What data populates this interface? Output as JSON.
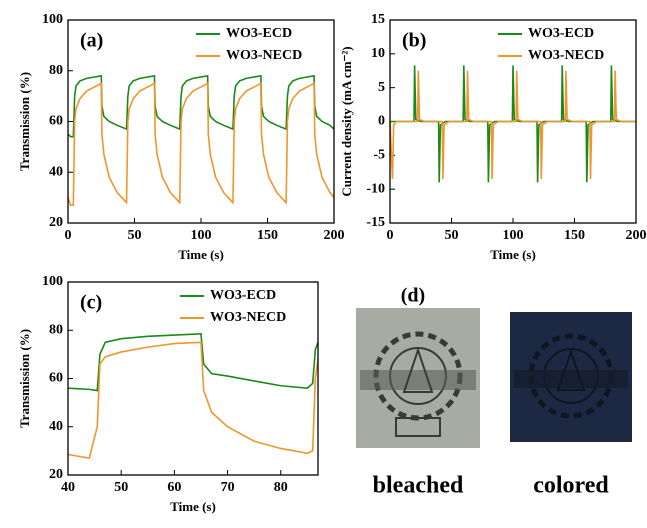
{
  "chart_data": [
    {
      "type": "line",
      "annotation": "(a)",
      "x_label": "Time (s)",
      "y_label": "Transmission (%)",
      "xlim": [
        0,
        200
      ],
      "xticks": [
        0,
        50,
        100,
        150,
        200
      ],
      "ylim": [
        20,
        100
      ],
      "yticks": [
        20,
        40,
        60,
        80,
        100
      ],
      "legend": "upper right",
      "x": [
        0,
        2,
        4,
        5,
        6,
        9,
        14,
        25,
        25.5,
        27,
        31,
        37,
        44,
        45,
        46,
        49,
        54,
        65,
        65.5,
        67,
        71,
        77,
        84,
        85,
        86,
        89,
        94,
        105,
        105.5,
        107,
        111,
        117,
        124,
        125,
        126,
        129,
        134,
        145,
        145.5,
        147,
        151,
        157,
        164,
        165,
        166,
        169,
        174,
        185,
        185.5,
        187,
        191,
        197,
        200
      ],
      "series": [
        {
          "name": "WO3-ECD",
          "color": "#1a8a1a",
          "values": [
            55,
            54,
            54,
            70,
            74,
            76,
            77,
            78,
            66,
            62,
            60,
            58.5,
            57,
            70,
            74,
            76,
            77,
            78,
            66,
            62,
            60,
            58.5,
            57,
            70,
            74,
            76,
            77,
            78,
            66,
            62,
            60,
            58.5,
            57,
            70,
            74,
            76,
            77,
            78,
            66,
            62,
            60,
            58.5,
            57,
            70,
            74,
            76,
            77,
            78,
            66,
            62,
            60,
            58.5,
            57
          ]
        },
        {
          "name": "WO3-NECD",
          "color": "#f0962d",
          "values": [
            30,
            27,
            27,
            60,
            65,
            69,
            72,
            75,
            55,
            47,
            38,
            32,
            28,
            60,
            65,
            69,
            72,
            75,
            55,
            47,
            38,
            32,
            28,
            60,
            65,
            69,
            72,
            75,
            55,
            47,
            38,
            32,
            28,
            60,
            65,
            69,
            72,
            75,
            55,
            47,
            38,
            32,
            28,
            60,
            65,
            69,
            72,
            75,
            55,
            47,
            38,
            32,
            30
          ]
        }
      ]
    },
    {
      "type": "line",
      "annotation": "(b)",
      "x_label": "Time (s)",
      "y_label": "Current density (mA cm⁻²)",
      "xlim": [
        0,
        200
      ],
      "xticks": [
        0,
        50,
        100,
        150,
        200
      ],
      "ylim": [
        -15,
        15
      ],
      "yticks": [
        -15,
        -10,
        -5,
        0,
        5,
        10,
        15
      ],
      "legend": "upper right",
      "series": [
        {
          "name": "WO3-ECD",
          "color": "#1a8a1a",
          "x": [
            0,
            19.5,
            20,
            21,
            25,
            39.5,
            40,
            41,
            45,
            59.5,
            60,
            61,
            65,
            79.5,
            80,
            81,
            85,
            99.5,
            100,
            101,
            105,
            119.5,
            120,
            121,
            125,
            139.5,
            140,
            141,
            145,
            159.5,
            160,
            161,
            165,
            179.5,
            180,
            181,
            185,
            200
          ],
          "values": [
            0,
            0,
            8.3,
            0.3,
            0,
            0,
            -9,
            -0.5,
            0,
            0,
            8.3,
            0.3,
            0,
            0,
            -9,
            -0.5,
            0,
            0,
            8.3,
            0.3,
            0,
            0,
            -9,
            -0.5,
            0,
            0,
            8.3,
            0.3,
            0,
            0,
            -9,
            -0.5,
            0,
            0,
            8.3,
            0.3,
            0,
            0
          ]
        },
        {
          "name": "WO3-NECD",
          "color": "#f0962d",
          "x": [
            0,
            2,
            3,
            5,
            22.5,
            23,
            24,
            28,
            42.5,
            43,
            44,
            48,
            62.5,
            63,
            64,
            68,
            82.5,
            83,
            84,
            88,
            102.5,
            103,
            104,
            108,
            122.5,
            123,
            124,
            128,
            142.5,
            143,
            144,
            148,
            162.5,
            163,
            164,
            168,
            182.5,
            183,
            184,
            188,
            200
          ],
          "values": [
            0,
            -8.5,
            -0.5,
            0,
            0,
            7.5,
            0.3,
            0,
            0,
            -8.5,
            -0.5,
            0,
            0,
            7.5,
            0.3,
            0,
            0,
            -8.5,
            -0.5,
            0,
            0,
            7.5,
            0.3,
            0,
            0,
            -8.5,
            -0.5,
            0,
            0,
            7.5,
            0.3,
            0,
            0,
            -8.5,
            -0.5,
            0,
            0,
            7.5,
            0.3,
            0,
            0
          ]
        }
      ]
    },
    {
      "type": "line",
      "annotation": "(c)",
      "x_label": "Time (s)",
      "y_label": "Transmission (%)",
      "xlim": [
        40,
        87
      ],
      "xticks": [
        40,
        50,
        60,
        70,
        80
      ],
      "ylim": [
        20,
        100
      ],
      "yticks": [
        20,
        40,
        60,
        80,
        100
      ],
      "legend": "upper right",
      "x": [
        40,
        44,
        45.5,
        46,
        47,
        50,
        55,
        60,
        65,
        65.5,
        67,
        70,
        75,
        80,
        85,
        86,
        86.5,
        87
      ],
      "series": [
        {
          "name": "WO3-ECD",
          "color": "#1a8a1a",
          "values": [
            56,
            55.5,
            55,
            70,
            75,
            76.5,
            77.5,
            78,
            78.5,
            66,
            62,
            61,
            59,
            57,
            56,
            58,
            72,
            75
          ]
        },
        {
          "name": "WO3-NECD",
          "color": "#f0962d",
          "values": [
            28.5,
            27,
            40,
            66,
            69,
            71,
            73,
            74.5,
            75,
            55,
            46,
            40,
            34,
            31,
            29,
            30,
            60,
            68
          ]
        }
      ]
    }
  ],
  "photos": {
    "label": "(d)",
    "items": [
      "bleached",
      "colored"
    ]
  }
}
